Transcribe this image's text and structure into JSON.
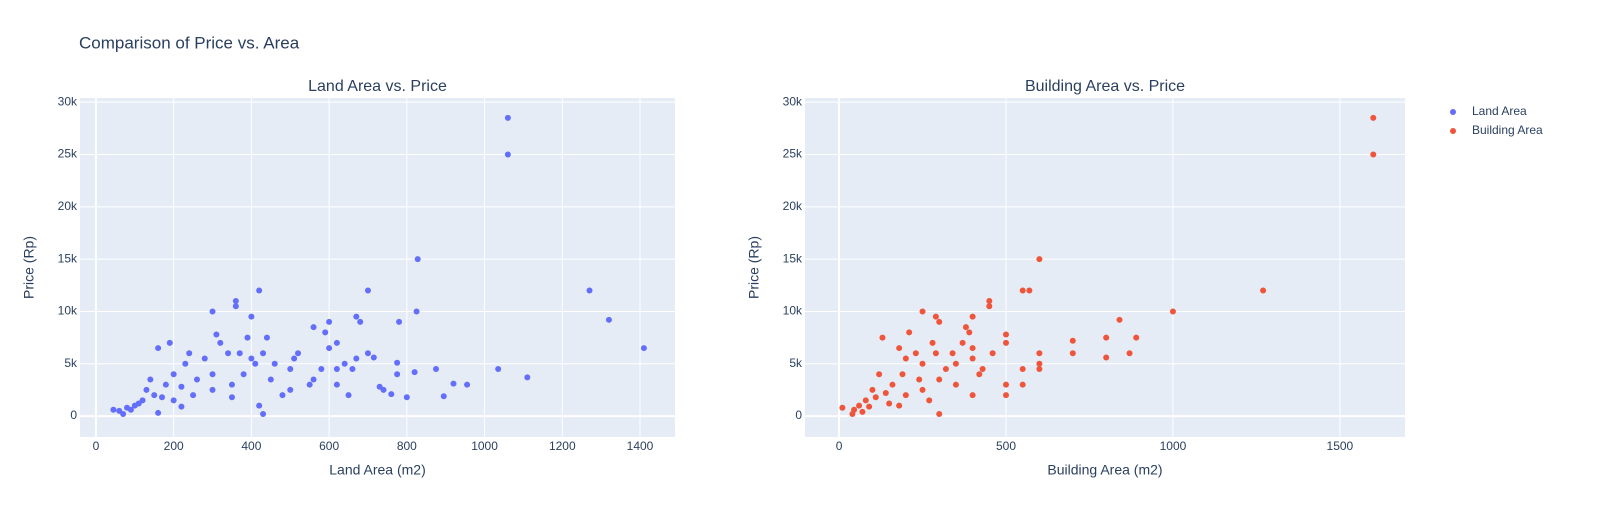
{
  "title": "Comparison of Price vs. Area",
  "chart_data": [
    {
      "type": "scatter",
      "title": "Land Area vs. Price",
      "x_label": "Land Area (m2)",
      "y_label": "Price (Rp)",
      "xlim": [
        -41,
        1490
      ],
      "ylim": [
        -2000,
        30400
      ],
      "grid": true,
      "xticks": [
        0,
        200,
        400,
        600,
        800,
        1000,
        1200,
        1400
      ],
      "yticks": [
        0,
        {
          "value": 5000,
          "label": "5k"
        },
        {
          "value": 10000,
          "label": "10k"
        },
        {
          "value": 15000,
          "label": "15k"
        },
        {
          "value": 20000,
          "label": "20k"
        },
        {
          "value": 25000,
          "label": "25k"
        },
        {
          "value": 30000,
          "label": "30k"
        }
      ],
      "x": [
        1060,
        1060,
        1270,
        1320,
        1410,
        1110,
        1035,
        955,
        920,
        895,
        875,
        828,
        825,
        820,
        800,
        780,
        775,
        775,
        760,
        740,
        730,
        715,
        700,
        700,
        680,
        670,
        670,
        660,
        650,
        640,
        620,
        620,
        600,
        600,
        590,
        580,
        560,
        550,
        520,
        510,
        500,
        480,
        460,
        440,
        430,
        420,
        410,
        400,
        400,
        390,
        380,
        370,
        360,
        360,
        350,
        340,
        320,
        310,
        300,
        300,
        280,
        260,
        240,
        230,
        220,
        200,
        190,
        180,
        160,
        150,
        140,
        120,
        100,
        80,
        60,
        45,
        250,
        200,
        170,
        130,
        110,
        90,
        300,
        350,
        420,
        450,
        500,
        560,
        620,
        430,
        220,
        160,
        70
      ],
      "series": [
        {
          "name": "Land Area",
          "color": "#636efa",
          "values": [
            28500,
            25000,
            12000,
            9200,
            6500,
            3700,
            4500,
            3000,
            3100,
            1900,
            4500,
            15000,
            10000,
            4200,
            1800,
            9000,
            5100,
            4000,
            2100,
            2500,
            2800,
            5600,
            12000,
            6000,
            9000,
            9500,
            5500,
            4500,
            2000,
            5000,
            7000,
            3000,
            9000,
            6500,
            8000,
            4500,
            8500,
            3000,
            6000,
            5500,
            4500,
            2000,
            5000,
            7500,
            6000,
            12000,
            5000,
            9500,
            5500,
            7500,
            4000,
            6000,
            11000,
            10500,
            3000,
            6000,
            7000,
            7800,
            10000,
            4000,
            5500,
            3500,
            6000,
            5000,
            2800,
            4000,
            7000,
            3000,
            6500,
            2000,
            3500,
            1500,
            1000,
            800,
            500,
            600,
            2000,
            1500,
            1800,
            2500,
            1200,
            600,
            2500,
            1800,
            1000,
            3500,
            2500,
            3500,
            4500,
            200,
            900,
            300,
            200
          ]
        }
      ]
    },
    {
      "type": "scatter",
      "title": "Building Area vs. Price",
      "x_label": "Building Area (m2)",
      "y_label": "Price (Rp)",
      "xlim": [
        -102,
        1695
      ],
      "ylim": [
        -2000,
        30400
      ],
      "grid": true,
      "xticks": [
        0,
        500,
        1000,
        1500
      ],
      "yticks": [
        0,
        {
          "value": 5000,
          "label": "5k"
        },
        {
          "value": 10000,
          "label": "10k"
        },
        {
          "value": 15000,
          "label": "15k"
        },
        {
          "value": 20000,
          "label": "20k"
        },
        {
          "value": 25000,
          "label": "25k"
        },
        {
          "value": 30000,
          "label": "30k"
        }
      ],
      "x": [
        1600,
        1600,
        1270,
        1000,
        890,
        870,
        840,
        800,
        800,
        700,
        700,
        600,
        600,
        600,
        600,
        570,
        550,
        550,
        550,
        500,
        500,
        500,
        500,
        460,
        450,
        450,
        430,
        400,
        400,
        400,
        390,
        380,
        370,
        350,
        340,
        320,
        300,
        290,
        290,
        280,
        250,
        250,
        240,
        230,
        210,
        200,
        190,
        180,
        160,
        130,
        120,
        100,
        80,
        60,
        45,
        10,
        300,
        150,
        200,
        250,
        350,
        110,
        70,
        40,
        300,
        400,
        420,
        270,
        180,
        140,
        90
      ],
      "series": [
        {
          "name": "Building Area",
          "color": "#EF553B",
          "values": [
            28500,
            25000,
            12000,
            10000,
            7500,
            6000,
            9200,
            7500,
            5600,
            7200,
            6000,
            15000,
            6000,
            5000,
            4500,
            12000,
            12000,
            4500,
            3000,
            7800,
            7000,
            2000,
            3000,
            6000,
            11000,
            10500,
            4500,
            9500,
            6500,
            5500,
            8000,
            8500,
            7000,
            5000,
            6000,
            4500,
            9000,
            9500,
            6000,
            7000,
            10000,
            5000,
            3500,
            6000,
            8000,
            5500,
            4000,
            6500,
            3000,
            7500,
            4000,
            2500,
            1500,
            1000,
            600,
            800,
            200,
            1200,
            2000,
            2500,
            3000,
            1800,
            400,
            200,
            3500,
            2000,
            4000,
            1500,
            1000,
            2200,
            900
          ]
        }
      ]
    }
  ]
}
